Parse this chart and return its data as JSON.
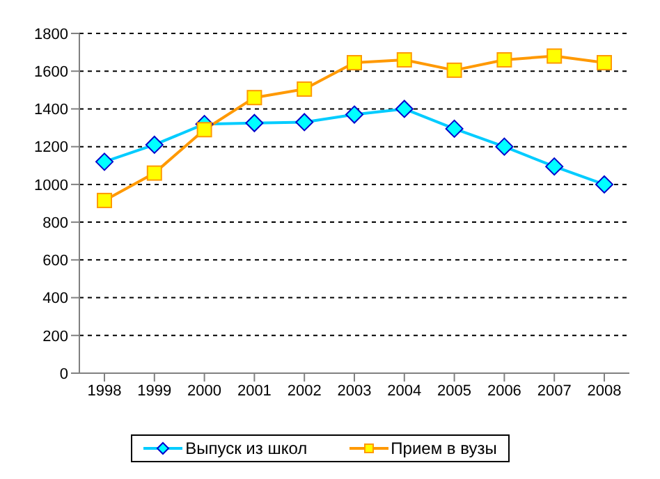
{
  "chart_data": {
    "type": "line",
    "categories": [
      "1998",
      "1999",
      "2000",
      "2001",
      "2002",
      "2003",
      "2004",
      "2005",
      "2006",
      "2007",
      "2008"
    ],
    "series": [
      {
        "name": "Выпуск из школ",
        "color": "#00ccff",
        "marker": "diamond",
        "values": [
          1120,
          1210,
          1320,
          1325,
          1330,
          1370,
          1400,
          1295,
          1200,
          1095,
          1000
        ]
      },
      {
        "name": "Прием в вузы",
        "color": "#ff9900",
        "marker": "square",
        "values": [
          915,
          1060,
          1290,
          1460,
          1505,
          1645,
          1660,
          1605,
          1660,
          1680,
          1645
        ]
      }
    ],
    "ylim": [
      0,
      1800
    ],
    "yticks": [
      0,
      200,
      400,
      600,
      800,
      1000,
      1200,
      1400,
      1600,
      1800
    ],
    "grid": "y",
    "legend": "bottom",
    "line_style": "solid"
  }
}
